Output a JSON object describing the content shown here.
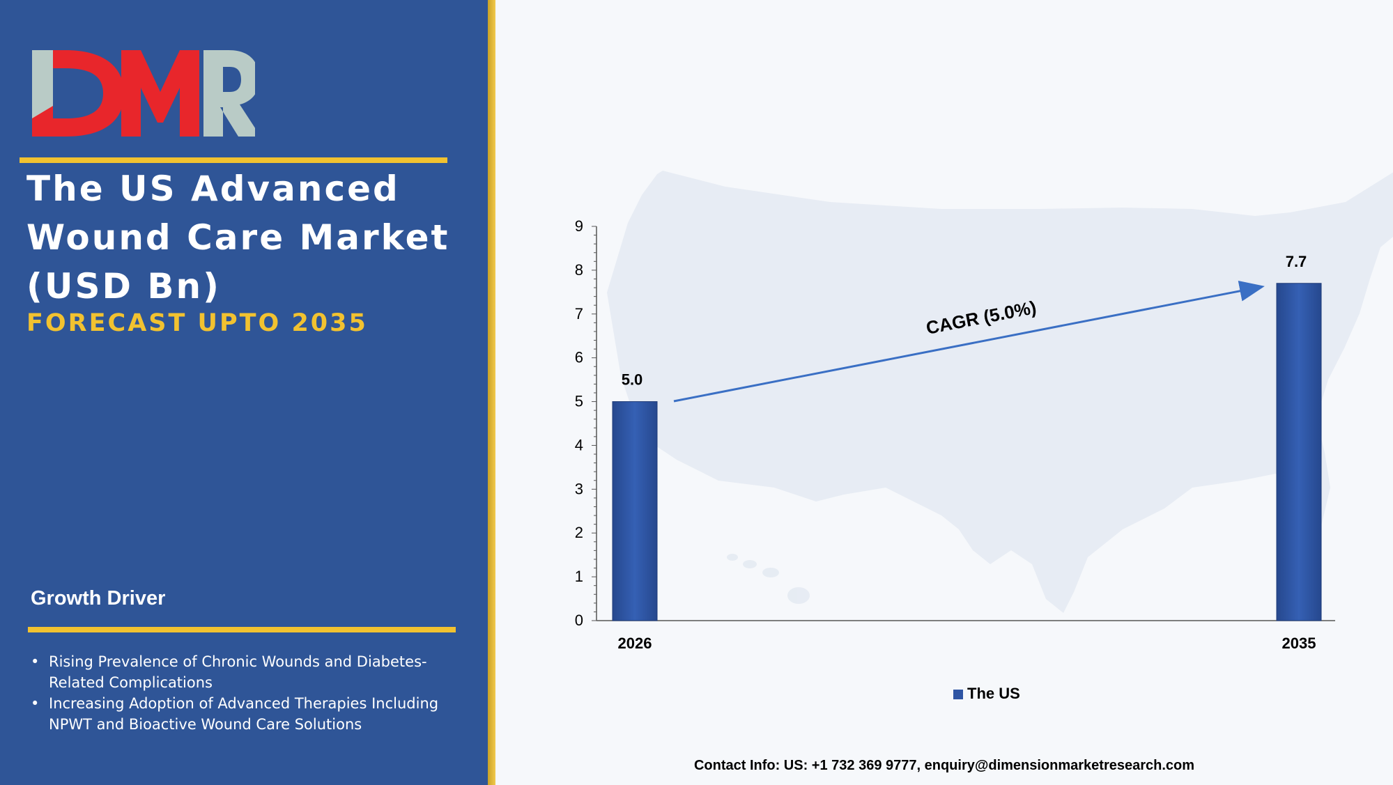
{
  "brand": {
    "logo_text": "DMR"
  },
  "title": "The US Advanced Wound Care Market (USD Bn)",
  "subtitle": "FORECAST UPTO 2035",
  "growth": {
    "heading": "Growth Driver",
    "items": [
      "Rising Prevalence of Chronic Wounds and Diabetes-Related Complications",
      "Increasing Adoption of Advanced Therapies Including NPWT and Bioactive Wound Care Solutions"
    ]
  },
  "chart_data": {
    "type": "bar",
    "categories": [
      "2026",
      "2035"
    ],
    "series": [
      {
        "name": "The US",
        "values": [
          5.0,
          7.7
        ]
      }
    ],
    "data_labels": [
      "5.0",
      "7.7"
    ],
    "title": "",
    "xlabel": "",
    "ylabel": "",
    "ylim": [
      0,
      9
    ],
    "yticks": [
      0,
      1,
      2,
      3,
      4,
      5,
      6,
      7,
      8,
      9
    ],
    "grid": false,
    "legend": "bottom",
    "annotation": "CAGR (5.0%)",
    "bar_color": "#2f55a4"
  },
  "contact": "Contact Info: US: +1 732 369 9777, enquiry@dimensionmarketresearch.com",
  "colors": {
    "panel": "#2f5597",
    "accent": "#f2c230",
    "logo_red": "#e8262b",
    "logo_grey": "#b9cbc6"
  }
}
